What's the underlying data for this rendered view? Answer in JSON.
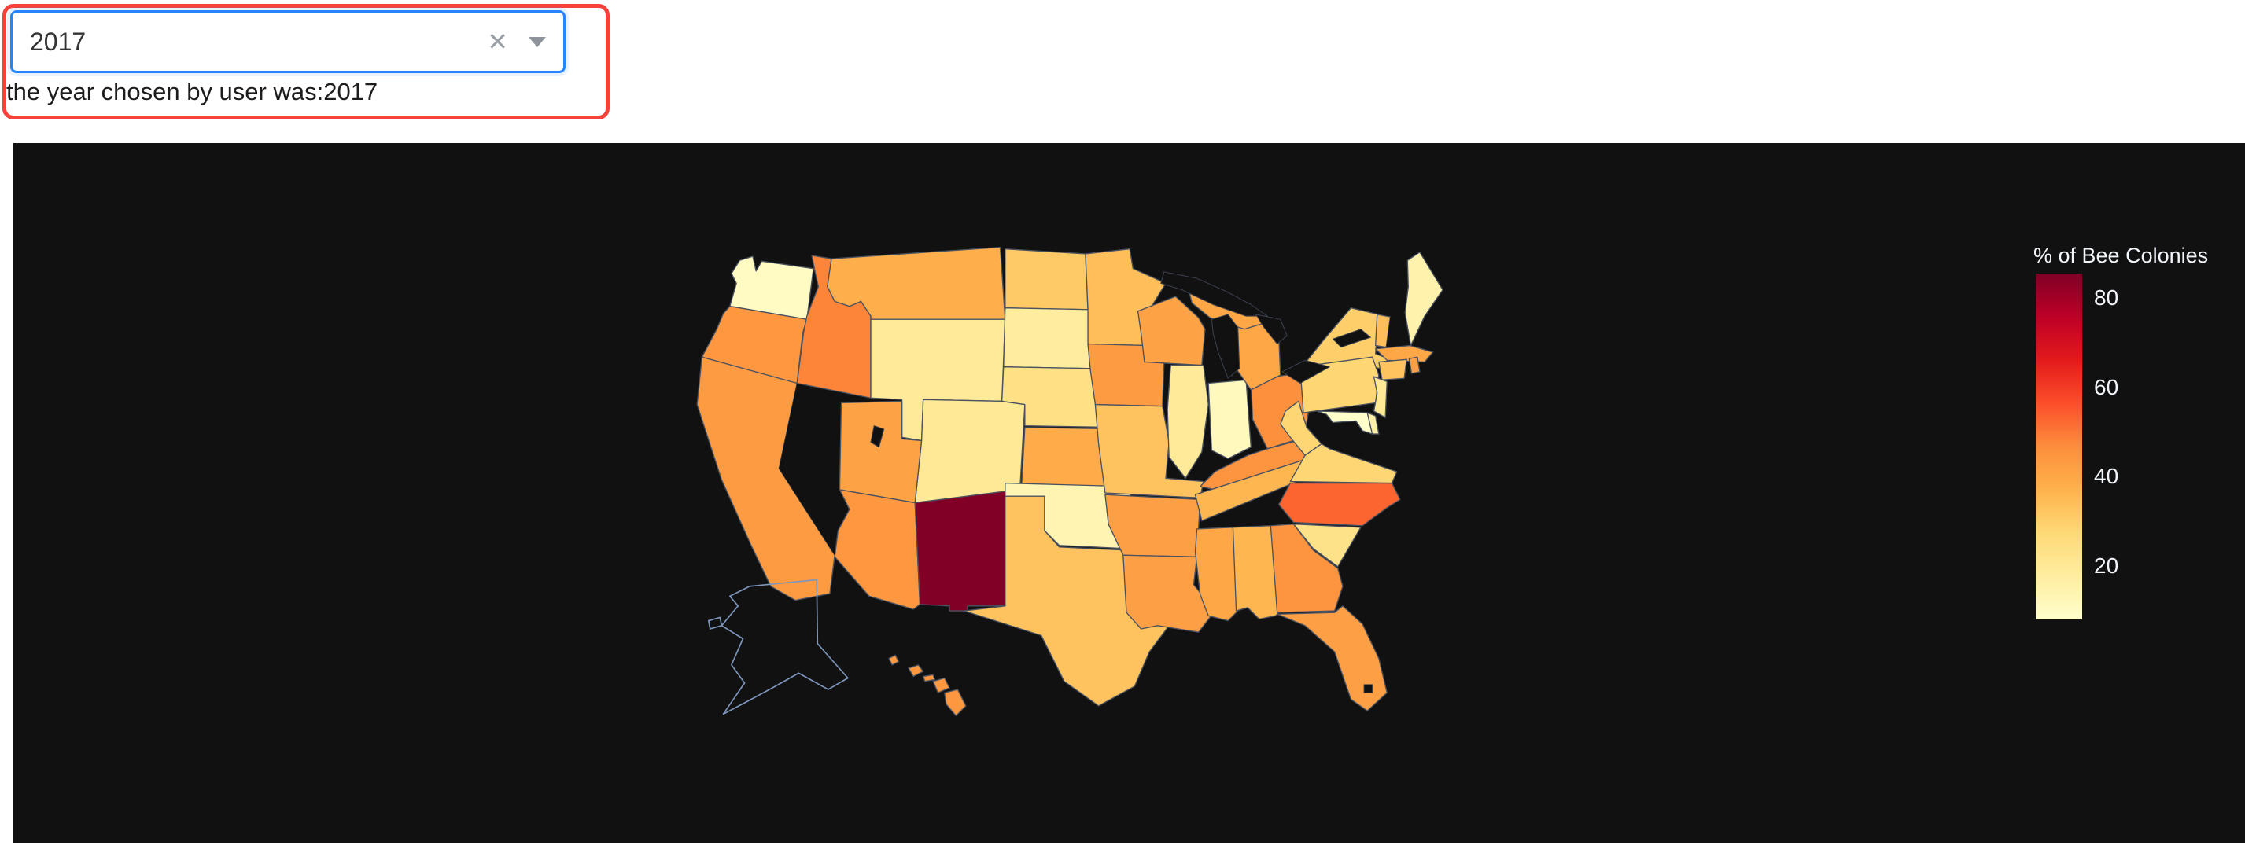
{
  "window": {
    "background": "#ffffff"
  },
  "annotation": {
    "border_color": "#f5423b"
  },
  "dropdown": {
    "value": "2017",
    "clear_icon": "✕"
  },
  "caption": {
    "text": "the year chosen by user was:2017"
  },
  "chart_data": {
    "type": "choropleth",
    "scope": "usa",
    "year_selected": 2017,
    "background": "#111111",
    "state_border_color": "#4a5260",
    "colorbar": {
      "title": "% of Bee Colonies",
      "ticks": [
        20,
        40,
        60,
        80
      ],
      "range": [
        8,
        85.5
      ]
    },
    "colorscale": {
      "name": "YlOrRd",
      "stops": [
        [
          0,
          "#ffffcc"
        ],
        [
          0.125,
          "#ffeda0"
        ],
        [
          0.25,
          "#fed976"
        ],
        [
          0.375,
          "#feb24c"
        ],
        [
          0.5,
          "#fd8d3c"
        ],
        [
          0.625,
          "#fc4e2a"
        ],
        [
          0.75,
          "#e31a1c"
        ],
        [
          0.875,
          "#bd0026"
        ],
        [
          1,
          "#800026"
        ]
      ]
    },
    "no_data_states": [
      "NV",
      "NH",
      "AK"
    ],
    "states": [
      {
        "state": "WA",
        "value": 10
      },
      {
        "state": "OR",
        "value": 44
      },
      {
        "state": "CA",
        "value": 43
      },
      {
        "state": "NV",
        "value": null
      },
      {
        "state": "ID",
        "value": 48
      },
      {
        "state": "MT",
        "value": 38
      },
      {
        "state": "WY",
        "value": 19
      },
      {
        "state": "UT",
        "value": 41
      },
      {
        "state": "CO",
        "value": 20
      },
      {
        "state": "AZ",
        "value": 44
      },
      {
        "state": "NM",
        "value": 85.5
      },
      {
        "state": "ND",
        "value": 31
      },
      {
        "state": "SD",
        "value": 18
      },
      {
        "state": "NE",
        "value": 24
      },
      {
        "state": "KS",
        "value": 39
      },
      {
        "state": "OK",
        "value": 14
      },
      {
        "state": "TX",
        "value": 33
      },
      {
        "state": "MN",
        "value": 34
      },
      {
        "state": "IA",
        "value": 43
      },
      {
        "state": "MO",
        "value": 33
      },
      {
        "state": "AR",
        "value": 42
      },
      {
        "state": "LA",
        "value": 42
      },
      {
        "state": "WI",
        "value": 41
      },
      {
        "state": "IL",
        "value": 19
      },
      {
        "state": "IN",
        "value": 11
      },
      {
        "state": "MI",
        "value": 40
      },
      {
        "state": "OH",
        "value": 46
      },
      {
        "state": "KY",
        "value": 45
      },
      {
        "state": "TN",
        "value": 36
      },
      {
        "state": "MS",
        "value": 40
      },
      {
        "state": "AL",
        "value": 36
      },
      {
        "state": "GA",
        "value": 45
      },
      {
        "state": "FL",
        "value": 42
      },
      {
        "state": "SC",
        "value": 23
      },
      {
        "state": "NC",
        "value": 53
      },
      {
        "state": "VA",
        "value": 28
      },
      {
        "state": "WV",
        "value": 28
      },
      {
        "state": "MD",
        "value": 8
      },
      {
        "state": "DE",
        "value": 16
      },
      {
        "state": "NJ",
        "value": 20
      },
      {
        "state": "PA",
        "value": 28
      },
      {
        "state": "NY",
        "value": 30
      },
      {
        "state": "VT",
        "value": 34
      },
      {
        "state": "NH",
        "value": null
      },
      {
        "state": "ME",
        "value": 15
      },
      {
        "state": "MA",
        "value": 40
      },
      {
        "state": "CT",
        "value": 33
      },
      {
        "state": "RI",
        "value": 42
      },
      {
        "state": "HI",
        "value": 44
      },
      {
        "state": "AK",
        "value": null
      }
    ]
  }
}
